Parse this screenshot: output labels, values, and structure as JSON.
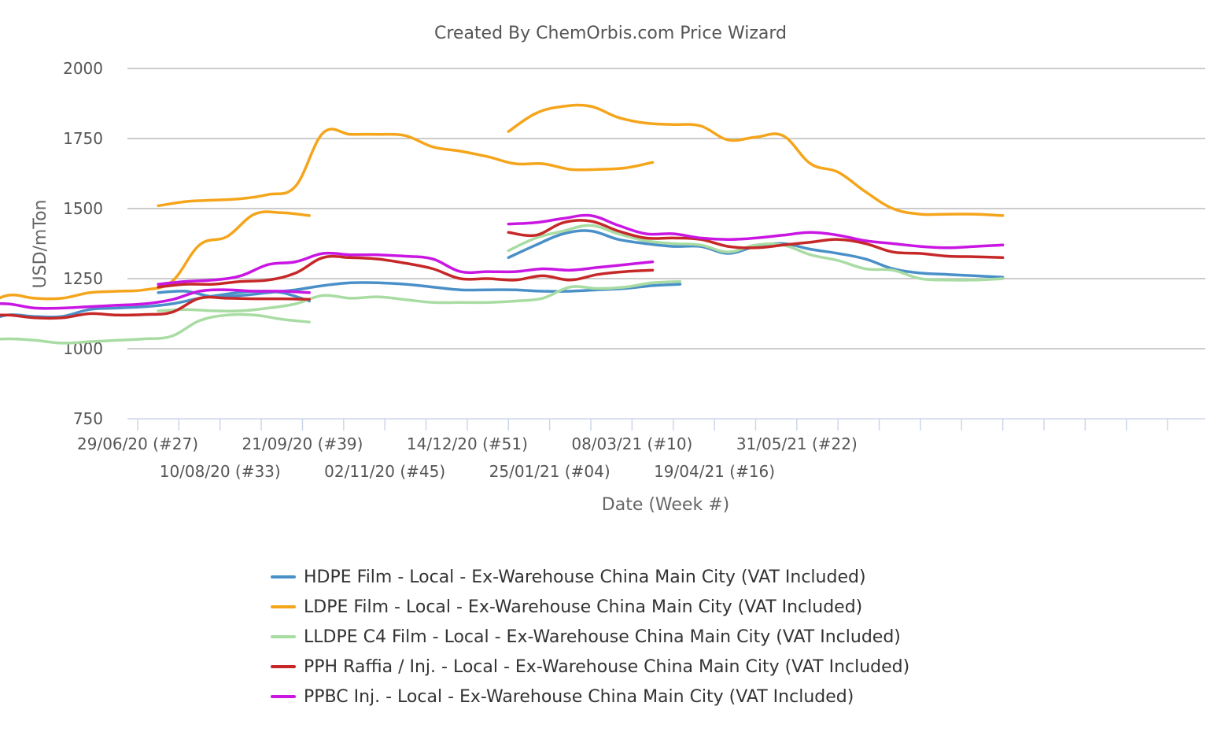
{
  "chart_data": {
    "type": "line",
    "title": "Created By ChemOrbis.com Price Wizard",
    "xlabel": "Date (Week #)",
    "ylabel": "USD/mTon",
    "ylim": [
      750,
      2000
    ],
    "yticks": [
      750,
      1000,
      1250,
      1500,
      1750,
      2000
    ],
    "grid": true,
    "legend_position": "bottom",
    "x_week_range": [
      27,
      104
    ],
    "x_ticks": [
      {
        "week": 27,
        "label": "29/06/20 (#27)"
      },
      {
        "week": 33,
        "label": "10/08/20 (#33)"
      },
      {
        "week": 39,
        "label": "21/09/20 (#39)"
      },
      {
        "week": 45,
        "label": "02/11/20 (#45)"
      },
      {
        "week": 51,
        "label": "14/12/20 (#51)"
      },
      {
        "week": 57,
        "label": "25/01/21 (#04)"
      },
      {
        "week": 63,
        "label": "08/03/21 (#10)"
      },
      {
        "week": 69,
        "label": "19/04/21 (#16)"
      },
      {
        "week": 75,
        "label": "31/05/21 (#22)"
      }
    ],
    "series": [
      {
        "name": "HDPE Film - Local - Ex-Warehouse China Main City (VAT Included)",
        "color": "#4a90c8",
        "segments": [
          {
            "start_week": 27,
            "values": [
              1060,
              1090,
              1120,
              1115,
              1115,
              1140,
              1145,
              1150,
              1160,
              1180,
              1195,
              1205,
              1200,
              1170
            ]
          },
          {
            "start_week": 57,
            "values": [
              1200,
              1205,
              1185,
              1190,
              1200,
              1210,
              1225,
              1235,
              1235,
              1230,
              1220,
              1210,
              1210,
              1210,
              1205,
              1205,
              1210,
              1215,
              1225,
              1230
            ]
          },
          {
            "start_week": 108,
            "values": [
              1325,
              1370,
              1410,
              1420,
              1390,
              1375,
              1365,
              1365,
              1340,
              1365,
              1375,
              1355,
              1340,
              1320,
              1285,
              1270,
              1265,
              1260,
              1255
            ]
          }
        ]
      },
      {
        "name": "LDPE Film - Local - Ex-Warehouse China Main City (VAT Included)",
        "color": "#f5a51b",
        "segments": [
          {
            "start_week": 27,
            "values": [
              1090,
              1140,
              1190,
              1180,
              1180,
              1200,
              1205,
              1210,
              1240,
              1370,
              1400,
              1480,
              1485,
              1475
            ]
          },
          {
            "start_week": 57,
            "values": [
              1510,
              1525,
              1530,
              1535,
              1550,
              1580,
              1770,
              1765,
              1765,
              1760,
              1720,
              1705,
              1685,
              1660,
              1660,
              1640,
              1640,
              1645,
              1665
            ]
          },
          {
            "start_week": 108,
            "values": [
              1775,
              1840,
              1865,
              1865,
              1825,
              1805,
              1800,
              1795,
              1745,
              1755,
              1760,
              1660,
              1630,
              1560,
              1500,
              1480,
              1480,
              1480,
              1475
            ]
          }
        ]
      },
      {
        "name": "LLDPE C4 Film - Local - Ex-Warehouse China Main City (VAT Included)",
        "color": "#a8dca3",
        "segments": [
          {
            "start_week": 27,
            "values": [
              975,
              1025,
              1035,
              1030,
              1020,
              1025,
              1030,
              1035,
              1045,
              1100,
              1120,
              1120,
              1105,
              1095
            ]
          },
          {
            "start_week": 57,
            "values": [
              1135,
              1140,
              1135,
              1135,
              1145,
              1160,
              1190,
              1180,
              1185,
              1175,
              1165,
              1165,
              1165,
              1170,
              1180,
              1220,
              1215,
              1220,
              1235,
              1240
            ]
          },
          {
            "start_week": 108,
            "values": [
              1350,
              1395,
              1420,
              1440,
              1410,
              1385,
              1375,
              1370,
              1345,
              1370,
              1370,
              1335,
              1315,
              1285,
              1280,
              1250,
              1245,
              1245,
              1250
            ]
          }
        ]
      },
      {
        "name": "PPH Raffia / Inj. - Local - Ex-Warehouse China Main City (VAT Included)",
        "color": "#c62828",
        "segments": [
          {
            "start_week": 27,
            "values": [
              1095,
              1115,
              1120,
              1110,
              1110,
              1125,
              1120,
              1122,
              1130,
              1180,
              1180,
              1178,
              1178,
              1176
            ]
          },
          {
            "start_week": 57,
            "values": [
              1220,
              1230,
              1230,
              1240,
              1245,
              1270,
              1325,
              1325,
              1320,
              1305,
              1285,
              1250,
              1250,
              1245,
              1260,
              1245,
              1265,
              1275,
              1280
            ]
          },
          {
            "start_week": 108,
            "values": [
              1415,
              1405,
              1450,
              1455,
              1420,
              1395,
              1395,
              1390,
              1365,
              1360,
              1370,
              1380,
              1390,
              1375,
              1345,
              1340,
              1330,
              1328,
              1325
            ]
          }
        ]
      },
      {
        "name": "PPBC Inj. - Local - Ex-Warehouse China Main City (VAT Included)",
        "color": "#c916e3",
        "segments": [
          {
            "start_week": 27,
            "values": [
              1125,
              1155,
              1160,
              1145,
              1145,
              1150,
              1155,
              1160,
              1175,
              1205,
              1210,
              1205,
              1205,
              1200
            ]
          },
          {
            "start_week": 57,
            "values": [
              1230,
              1240,
              1245,
              1260,
              1300,
              1310,
              1340,
              1335,
              1335,
              1330,
              1320,
              1275,
              1275,
              1275,
              1285,
              1280,
              1290,
              1300,
              1310
            ]
          },
          {
            "start_week": 108,
            "values": [
              1445,
              1450,
              1465,
              1475,
              1440,
              1410,
              1410,
              1395,
              1390,
              1395,
              1405,
              1415,
              1405,
              1385,
              1375,
              1365,
              1360,
              1365,
              1370
            ]
          }
        ]
      }
    ]
  }
}
